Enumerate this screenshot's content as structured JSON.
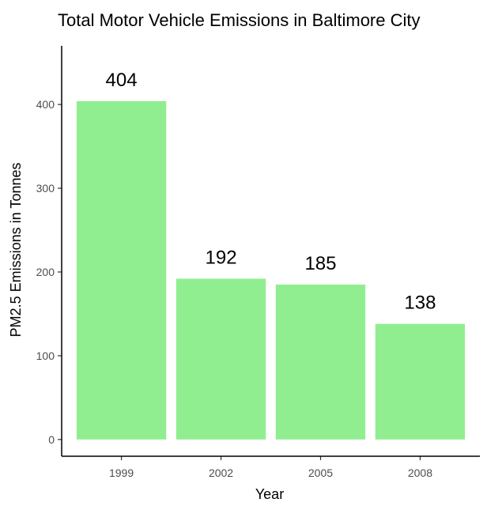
{
  "chart_data": {
    "type": "bar",
    "title": "Total Motor Vehicle Emissions in Baltimore City",
    "xlabel": "Year",
    "ylabel": "PM2.5 Emissions in Tonnes",
    "categories": [
      "1999",
      "2002",
      "2005",
      "2008"
    ],
    "values": [
      404,
      192,
      185,
      138
    ],
    "data_labels": [
      "404",
      "192",
      "185",
      "138"
    ],
    "yticks": [
      0,
      100,
      200,
      300,
      400
    ],
    "ytick_labels": [
      "0",
      "100",
      "200",
      "300",
      "400"
    ],
    "ylim": [
      -20,
      470
    ],
    "grid": false,
    "legend": "none",
    "bar_color": "#90EE90"
  }
}
